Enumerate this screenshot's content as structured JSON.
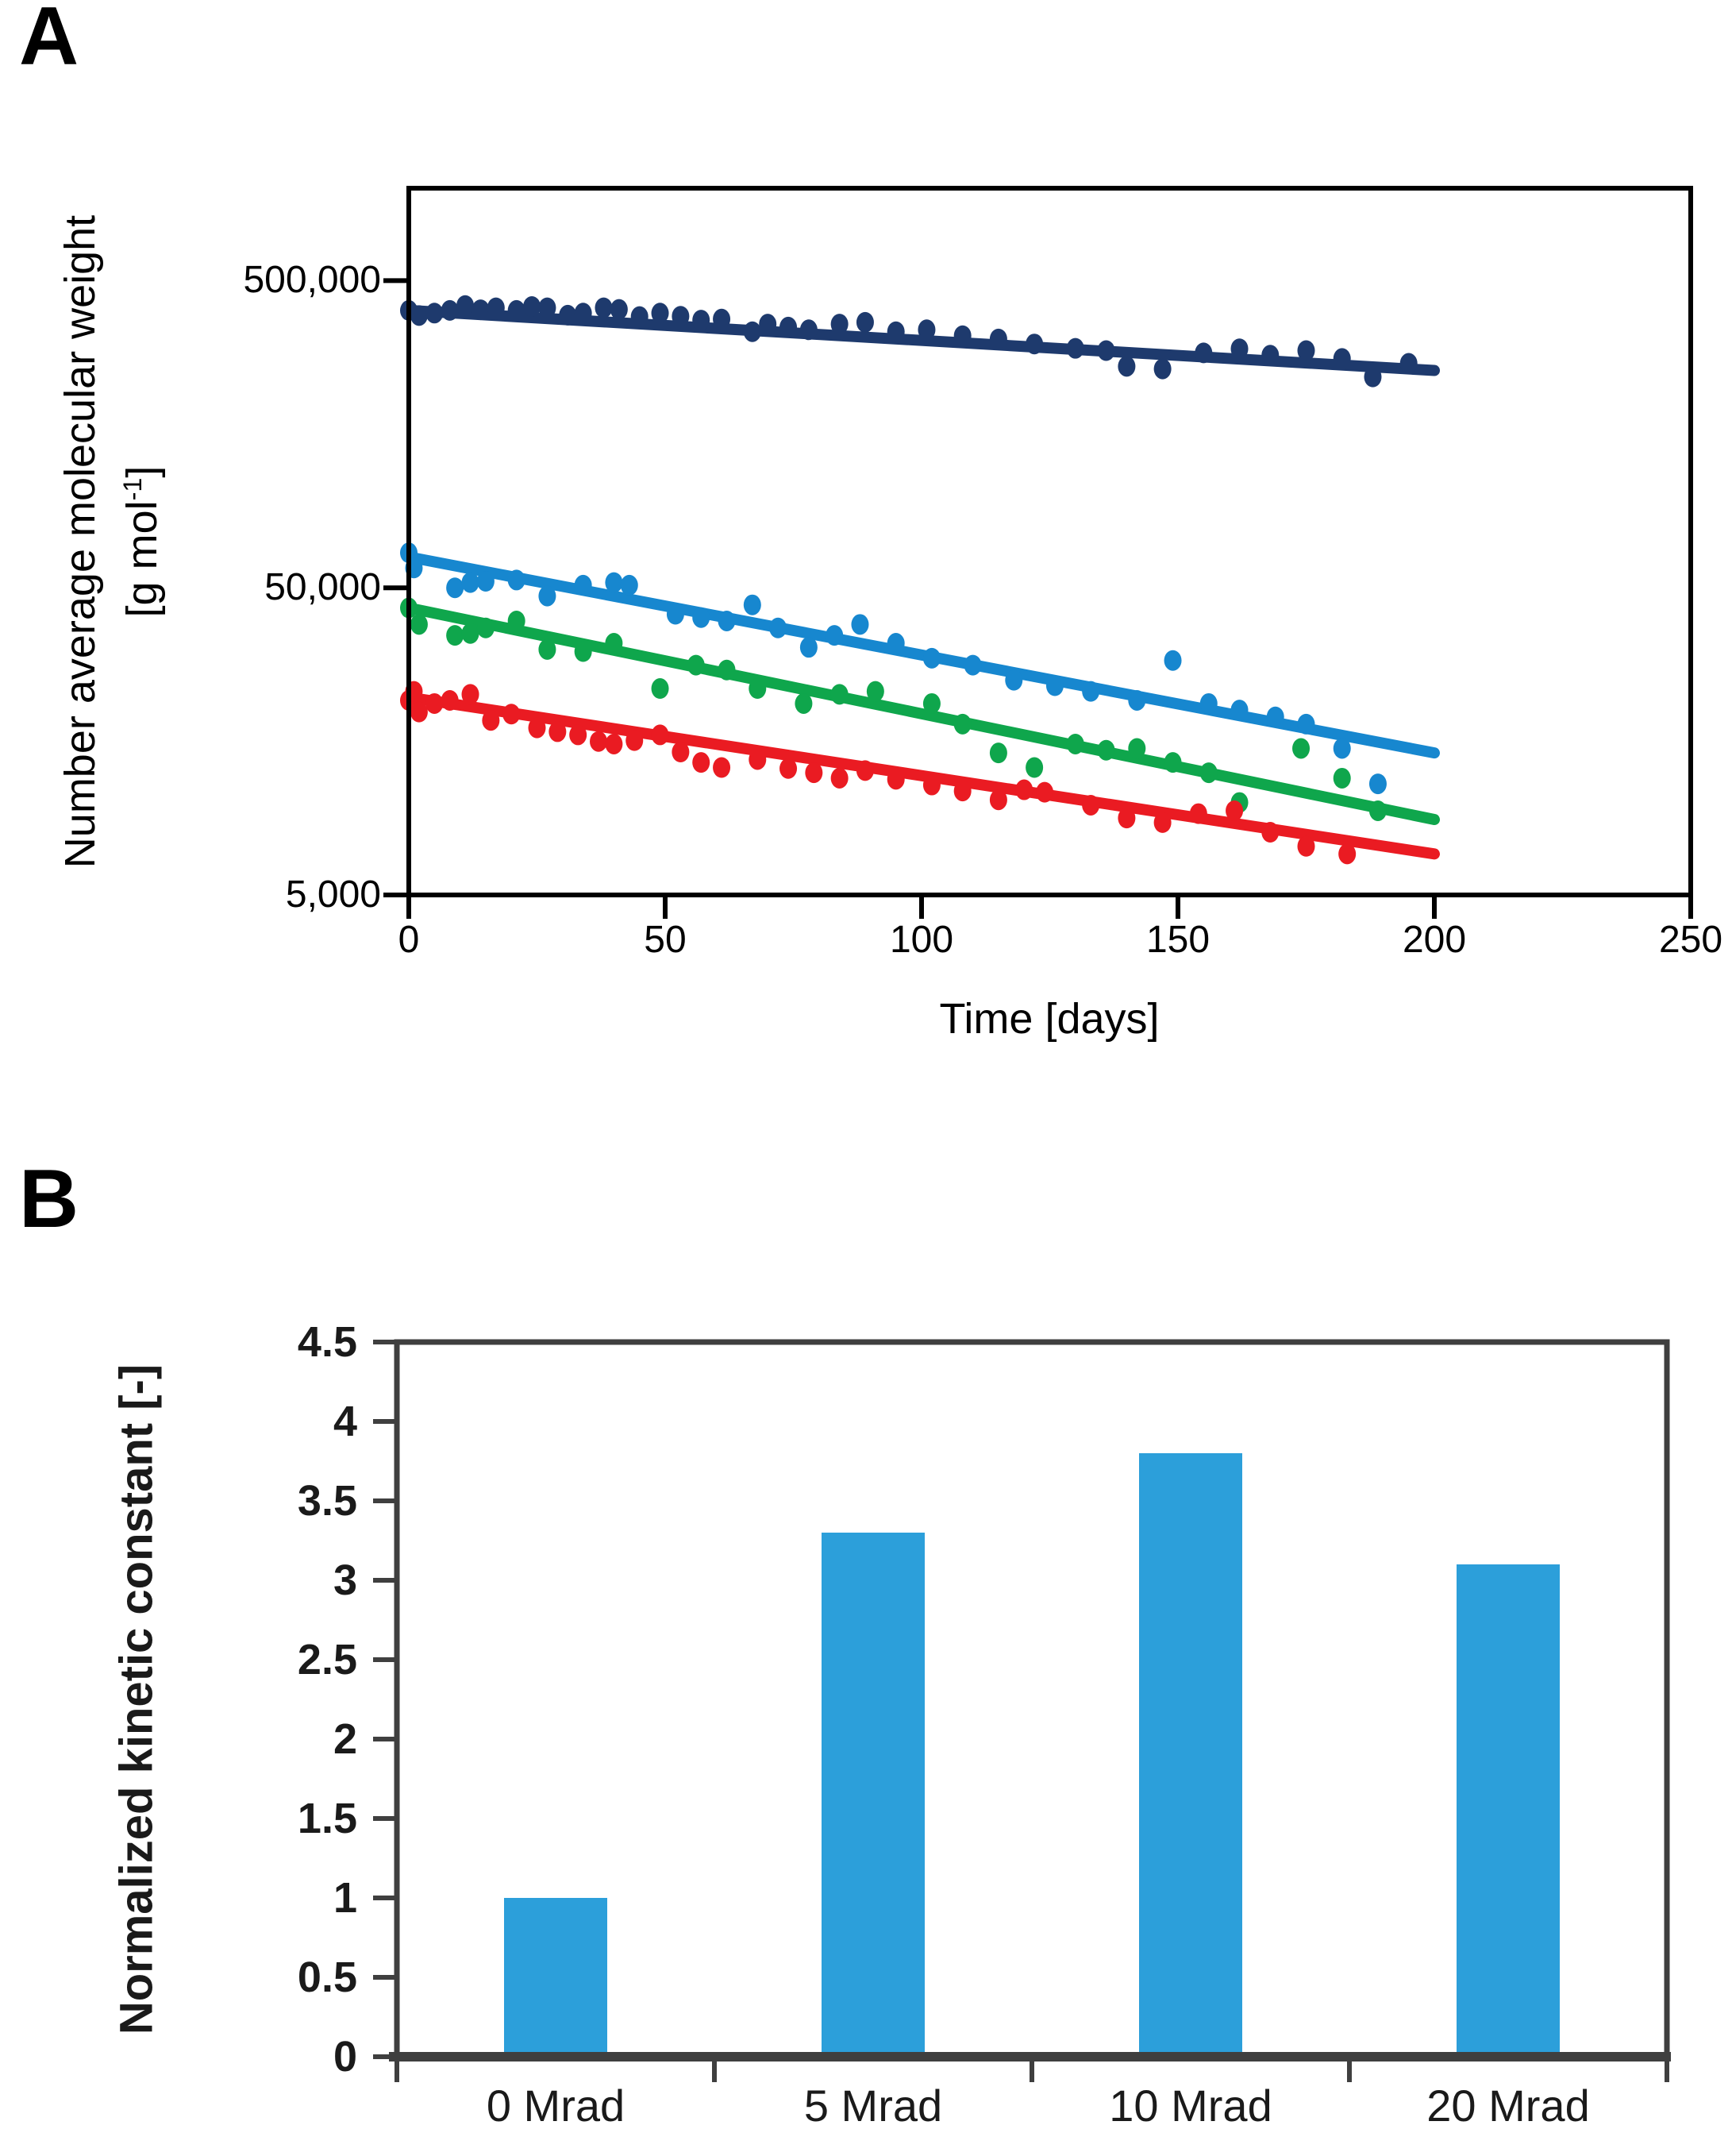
{
  "figure": {
    "panel_a": {
      "label": "A",
      "y_axis_title_line1": "Number average molecular weight",
      "y_axis_unit_pre": "[g mol",
      "y_axis_unit_sup": "-1",
      "y_axis_unit_post": "]",
      "x_axis_title": "Time [days]",
      "y_tick_labels": [
        "500,000",
        "50,000",
        "5,000"
      ],
      "x_tick_labels": [
        "0",
        "50",
        "100",
        "150",
        "200",
        "250"
      ]
    },
    "panel_b": {
      "label": "B",
      "y_axis_title": "Normalized kinetic constant [-]",
      "y_tick_labels": [
        "4.5",
        "4",
        "3.5",
        "3",
        "2.5",
        "2",
        "1.5",
        "1",
        "0.5",
        "0"
      ],
      "x_category_labels": [
        "0 Mrad",
        "5 Mrad",
        "10 Mrad",
        "20 Mrad"
      ]
    },
    "colors": {
      "navy": "#1E3A6D",
      "blue": "#1787CF",
      "green": "#0FA64C",
      "red": "#EA1B22",
      "bar_blue": "#2C9FDA",
      "frame_a": "#000000",
      "frame_b": "#3F3F3F"
    }
  },
  "chart_data": [
    {
      "type": "scatter",
      "title": "",
      "xlabel": "Time [days]",
      "ylabel": "Number average molecular weight [g mol-1]",
      "y_scale": "log",
      "x_range": [
        0,
        250
      ],
      "y_range": [
        5000,
        1000000
      ],
      "x_ticks": [
        0,
        50,
        100,
        150,
        200,
        250
      ],
      "y_ticks": [
        500000,
        50000,
        5000
      ],
      "grid": false,
      "legend": "none",
      "series": [
        {
          "name": "navy-high-mw",
          "color": "#1E3A6D",
          "trend_line": {
            "x": [
              0,
              200
            ],
            "y": [
              400000,
              255000
            ]
          },
          "points": [
            [
              0,
              400000
            ],
            [
              2,
              385000
            ],
            [
              5,
              392000
            ],
            [
              8,
              400000
            ],
            [
              11,
              415000
            ],
            [
              14,
              402000
            ],
            [
              17,
              408000
            ],
            [
              21,
              400000
            ],
            [
              24,
              412000
            ],
            [
              27,
              408000
            ],
            [
              31,
              386000
            ],
            [
              34,
              392000
            ],
            [
              38,
              408000
            ],
            [
              41,
              403000
            ],
            [
              45,
              382000
            ],
            [
              49,
              392000
            ],
            [
              53,
              383000
            ],
            [
              57,
              372000
            ],
            [
              61,
              375000
            ],
            [
              67,
              341000
            ],
            [
              70,
              361000
            ],
            [
              74,
              353000
            ],
            [
              78,
              346000
            ],
            [
              84,
              361000
            ],
            [
              89,
              366000
            ],
            [
              95,
              341000
            ],
            [
              101,
              346000
            ],
            [
              108,
              331000
            ],
            [
              115,
              323000
            ],
            [
              122,
              311000
            ],
            [
              130,
              301000
            ],
            [
              136,
              296000
            ],
            [
              140,
              263000
            ],
            [
              147,
              258000
            ],
            [
              155,
              291000
            ],
            [
              162,
              300000
            ],
            [
              168,
              286000
            ],
            [
              175,
              296000
            ],
            [
              182,
              279000
            ],
            [
              188,
              243000
            ],
            [
              195,
              269000
            ]
          ]
        },
        {
          "name": "blue-mid-mw",
          "color": "#1787CF",
          "trend_line": {
            "x": [
              0,
              200
            ],
            "y": [
              63000,
              14500
            ]
          },
          "points": [
            [
              0,
              65000
            ],
            [
              1,
              58000
            ],
            [
              9,
              50000
            ],
            [
              12,
              52000
            ],
            [
              15,
              52500
            ],
            [
              21,
              53000
            ],
            [
              27,
              47000
            ],
            [
              34,
              51000
            ],
            [
              40,
              52000
            ],
            [
              43,
              51000
            ],
            [
              52,
              41000
            ],
            [
              57,
              40000
            ],
            [
              62,
              39000
            ],
            [
              67,
              44000
            ],
            [
              72,
              37000
            ],
            [
              78,
              32000
            ],
            [
              83,
              35000
            ],
            [
              88,
              38000
            ],
            [
              95,
              33000
            ],
            [
              102,
              29500
            ],
            [
              110,
              28000
            ],
            [
              118,
              25000
            ],
            [
              126,
              24000
            ],
            [
              133,
              23000
            ],
            [
              142,
              21500
            ],
            [
              149,
              29000
            ],
            [
              156,
              21000
            ],
            [
              162,
              20000
            ],
            [
              169,
              19000
            ],
            [
              175,
              18000
            ],
            [
              182,
              15000
            ],
            [
              189,
              11500
            ]
          ]
        },
        {
          "name": "green-mid-mw",
          "color": "#0FA64C",
          "trend_line": {
            "x": [
              0,
              200
            ],
            "y": [
              43000,
              8800
            ]
          },
          "points": [
            [
              0,
              43000
            ],
            [
              2,
              38000
            ],
            [
              9,
              35000
            ],
            [
              12,
              35500
            ],
            [
              15,
              37000
            ],
            [
              21,
              39000
            ],
            [
              27,
              31500
            ],
            [
              34,
              31000
            ],
            [
              40,
              33000
            ],
            [
              49,
              23500
            ],
            [
              56,
              28000
            ],
            [
              62,
              27000
            ],
            [
              68,
              23500
            ],
            [
              77,
              21000
            ],
            [
              84,
              22500
            ],
            [
              91,
              23000
            ],
            [
              102,
              21000
            ],
            [
              108,
              18000
            ],
            [
              115,
              14500
            ],
            [
              122,
              13000
            ],
            [
              130,
              15500
            ],
            [
              136,
              14800
            ],
            [
              142,
              15000
            ],
            [
              149,
              13500
            ],
            [
              156,
              12500
            ],
            [
              162,
              10000
            ],
            [
              174,
              15000
            ],
            [
              182,
              12000
            ],
            [
              189,
              9400
            ]
          ]
        },
        {
          "name": "red-low-mw",
          "color": "#EA1B22",
          "trend_line": {
            "x": [
              0,
              200
            ],
            "y": [
              22000,
              6800
            ]
          },
          "points": [
            [
              0,
              21500
            ],
            [
              1,
              23000
            ],
            [
              2,
              19700
            ],
            [
              5,
              21000
            ],
            [
              8,
              21500
            ],
            [
              12,
              22500
            ],
            [
              16,
              18500
            ],
            [
              20,
              19400
            ],
            [
              25,
              17500
            ],
            [
              29,
              17000
            ],
            [
              33,
              16600
            ],
            [
              37,
              15800
            ],
            [
              40,
              15500
            ],
            [
              44,
              15900
            ],
            [
              49,
              16600
            ],
            [
              53,
              14600
            ],
            [
              57,
              13500
            ],
            [
              61,
              13000
            ],
            [
              68,
              13800
            ],
            [
              74,
              12900
            ],
            [
              79,
              12500
            ],
            [
              84,
              12000
            ],
            [
              89,
              12700
            ],
            [
              95,
              11900
            ],
            [
              102,
              11400
            ],
            [
              108,
              10900
            ],
            [
              115,
              10200
            ],
            [
              120,
              11000
            ],
            [
              124,
              10800
            ],
            [
              133,
              9800
            ],
            [
              140,
              8900
            ],
            [
              147,
              8600
            ],
            [
              154,
              9200
            ],
            [
              161,
              9400
            ],
            [
              168,
              8000
            ],
            [
              175,
              7200
            ],
            [
              183,
              6800
            ]
          ]
        }
      ]
    },
    {
      "type": "bar",
      "categories": [
        "0 Mrad",
        "5 Mrad",
        "10 Mrad",
        "20 Mrad"
      ],
      "values": [
        1.0,
        3.3,
        3.8,
        3.1
      ],
      "title": "",
      "xlabel": "",
      "ylabel": "Normalized kinetic constant [-]",
      "ylim": [
        0,
        4.5
      ],
      "y_tick_step": 0.5,
      "bar_color": "#2C9FDA",
      "grid": false,
      "legend": "none"
    }
  ]
}
